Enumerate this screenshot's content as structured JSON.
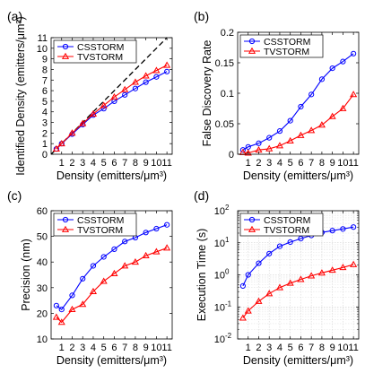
{
  "chart_data": [
    {
      "panel_label": "(a)",
      "type": "line",
      "xlabel": "Density (emitters/μm³)",
      "ylabel": "Identified Density (emitters/μm³)",
      "xlim": [
        0,
        11.5
      ],
      "ylim": [
        0,
        11
      ],
      "y_scale": "linear",
      "xticks": [
        1,
        2,
        3,
        4,
        5,
        6,
        7,
        8,
        9,
        10,
        11
      ],
      "yticks": [
        0,
        1,
        2,
        3,
        4,
        5,
        6,
        7,
        8,
        9,
        10,
        11
      ],
      "grid": false,
      "legend_position": "top-left",
      "reference_line": "y = x (dashed)",
      "x": [
        0.5,
        1,
        2,
        3,
        4,
        5,
        6,
        7,
        8,
        9,
        10,
        11
      ],
      "series": [
        {
          "name": "CSSTORM",
          "color": "#0000ff",
          "marker": "circle",
          "values": [
            0.5,
            1.0,
            1.9,
            2.8,
            3.7,
            4.3,
            5.0,
            5.6,
            6.2,
            6.8,
            7.3,
            7.8
          ]
        },
        {
          "name": "TVSTORM",
          "color": "#ff0000",
          "marker": "triangle",
          "values": [
            0.5,
            1.0,
            2.0,
            2.9,
            3.8,
            4.6,
            5.4,
            6.1,
            6.8,
            7.4,
            7.9,
            8.4
          ]
        }
      ]
    },
    {
      "panel_label": "(b)",
      "type": "line",
      "xlabel": "Density (emitters/μm³)",
      "ylabel": "False Discovery Rate",
      "xlim": [
        0,
        11.5
      ],
      "ylim": [
        0,
        0.2
      ],
      "y_scale": "linear",
      "xticks": [
        1,
        2,
        3,
        4,
        5,
        6,
        7,
        8,
        9,
        10,
        11
      ],
      "yticks": [
        0,
        0.05,
        0.1,
        0.15,
        0.2
      ],
      "ytick_labels": [
        "0",
        "0.05",
        "0.1",
        "0.15",
        "0.2"
      ],
      "grid": false,
      "legend_position": "top-left",
      "x": [
        0.5,
        1,
        2,
        3,
        4,
        5,
        6,
        7,
        8,
        9,
        10,
        11
      ],
      "series": [
        {
          "name": "CSSTORM",
          "color": "#0000ff",
          "marker": "circle",
          "values": [
            0.007,
            0.012,
            0.018,
            0.027,
            0.038,
            0.055,
            0.078,
            0.098,
            0.123,
            0.141,
            0.152,
            0.165
          ]
        },
        {
          "name": "TVSTORM",
          "color": "#ff0000",
          "marker": "triangle",
          "values": [
            0.003,
            0.002,
            0.007,
            0.009,
            0.014,
            0.022,
            0.031,
            0.039,
            0.048,
            0.062,
            0.075,
            0.098
          ]
        }
      ]
    },
    {
      "panel_label": "(c)",
      "type": "line",
      "xlabel": "Density (emitters/μm³)",
      "ylabel": "Precision (nm)",
      "xlim": [
        0,
        11.5
      ],
      "ylim": [
        10,
        60
      ],
      "y_scale": "linear",
      "xticks": [
        1,
        2,
        3,
        4,
        5,
        6,
        7,
        8,
        9,
        10,
        11
      ],
      "yticks": [
        10,
        20,
        30,
        40,
        50,
        60
      ],
      "grid": false,
      "legend_position": "top-left",
      "x": [
        0.5,
        1,
        2,
        3,
        4,
        5,
        6,
        7,
        8,
        9,
        10,
        11
      ],
      "series": [
        {
          "name": "CSSTORM",
          "color": "#0000ff",
          "marker": "circle",
          "values": [
            23,
            21.5,
            27,
            33.5,
            38.5,
            42,
            45,
            48,
            49.5,
            51.5,
            53,
            54.5
          ]
        },
        {
          "name": "TVSTORM",
          "color": "#ff0000",
          "marker": "triangle",
          "values": [
            18.5,
            16.5,
            21.5,
            23.5,
            28.5,
            32.5,
            35.5,
            38.5,
            40,
            42.5,
            44,
            45.5
          ]
        }
      ]
    },
    {
      "panel_label": "(d)",
      "type": "line",
      "xlabel": "Density (emitters/μm³)",
      "ylabel": "Execution Time (s)",
      "xlim": [
        0,
        11.5
      ],
      "ylim": [
        0.01,
        100
      ],
      "y_scale": "log",
      "xticks": [
        1,
        2,
        3,
        4,
        5,
        6,
        7,
        8,
        9,
        10,
        11
      ],
      "yticks": [
        0.01,
        0.1,
        1,
        10,
        100
      ],
      "ytick_labels": [
        {
          "base": "10",
          "exp": "-2"
        },
        {
          "base": "10",
          "exp": "-1"
        },
        {
          "base": "10",
          "exp": "0"
        },
        {
          "base": "10",
          "exp": "1"
        },
        {
          "base": "10",
          "exp": "2"
        }
      ],
      "grid": true,
      "legend_position": "top-left",
      "x": [
        0.5,
        1,
        2,
        3,
        4,
        5,
        6,
        7,
        8,
        9,
        10,
        11
      ],
      "series": [
        {
          "name": "CSSTORM",
          "color": "#0000ff",
          "marker": "circle",
          "values": [
            0.45,
            1.0,
            2.3,
            4.6,
            7.8,
            10.5,
            13.5,
            17,
            21,
            24,
            27,
            31
          ]
        },
        {
          "name": "TVSTORM",
          "color": "#ff0000",
          "marker": "triangle",
          "values": [
            0.045,
            0.075,
            0.15,
            0.26,
            0.4,
            0.55,
            0.72,
            0.93,
            1.15,
            1.4,
            1.7,
            2.1
          ]
        }
      ]
    }
  ]
}
